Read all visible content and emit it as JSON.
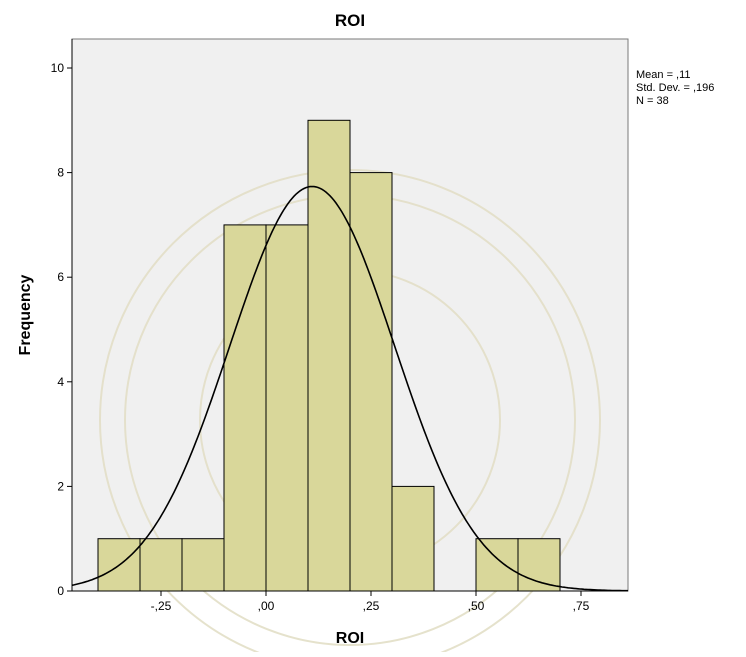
{
  "chart_data": {
    "type": "bar",
    "title": "ROI",
    "xlabel": "ROI",
    "ylabel": "Frequency",
    "bin_width": 0.1,
    "bins": [
      {
        "start": -0.4,
        "end": -0.3,
        "count": 1
      },
      {
        "start": -0.3,
        "end": -0.2,
        "count": 1
      },
      {
        "start": -0.2,
        "end": -0.1,
        "count": 1
      },
      {
        "start": -0.1,
        "end": 0.0,
        "count": 7
      },
      {
        "start": 0.0,
        "end": 0.1,
        "count": 7
      },
      {
        "start": 0.1,
        "end": 0.2,
        "count": 9
      },
      {
        "start": 0.2,
        "end": 0.3,
        "count": 8
      },
      {
        "start": 0.3,
        "end": 0.4,
        "count": 2
      },
      {
        "start": 0.4,
        "end": 0.5,
        "count": 0
      },
      {
        "start": 0.5,
        "end": 0.6,
        "count": 1
      },
      {
        "start": 0.6,
        "end": 0.7,
        "count": 1
      }
    ],
    "xlim": [
      -0.48,
      0.87
    ],
    "ylim": [
      0,
      10.5
    ],
    "x_ticks": [
      {
        "value": -0.25,
        "label": "-,25"
      },
      {
        "value": 0.0,
        "label": ",00"
      },
      {
        "value": 0.25,
        "label": ",25"
      },
      {
        "value": 0.5,
        "label": ",50"
      },
      {
        "value": 0.75,
        "label": ",75"
      }
    ],
    "y_ticks": [
      {
        "value": 0,
        "label": "0"
      },
      {
        "value": 2,
        "label": "2"
      },
      {
        "value": 4,
        "label": "4"
      },
      {
        "value": 6,
        "label": "6"
      },
      {
        "value": 8,
        "label": "8"
      },
      {
        "value": 10,
        "label": "10"
      }
    ],
    "normal_curve": {
      "mean": 0.11,
      "std_dev": 0.196,
      "n": 38
    },
    "stats": {
      "mean_label": "Mean = ,11",
      "std_label": "Std. Dev. = ,196",
      "n_label": "N = 38"
    },
    "grid": false,
    "legend": "none",
    "colors": {
      "bar_fill": "#d9d79a",
      "bar_stroke": "#000000",
      "plot_bg": "#f0f0f0",
      "curve": "#000000"
    }
  }
}
